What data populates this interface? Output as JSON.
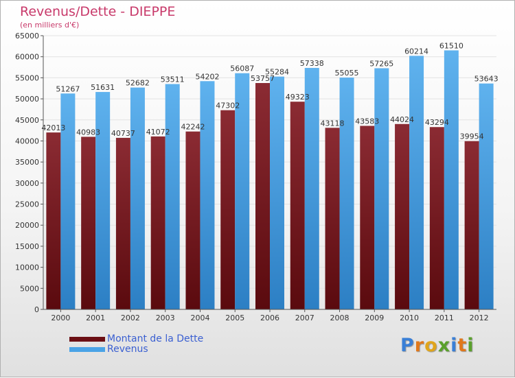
{
  "header": {
    "title": "Revenus/Dette - DIEPPE",
    "subtitle": "(en milliers d'€)"
  },
  "legend": {
    "items": [
      {
        "label": "Montant de la Dette",
        "color": "#6b0f14"
      },
      {
        "label": "Revenus",
        "color": "#4aa3e6"
      }
    ]
  },
  "logo": {
    "text": "Proxiti",
    "letter_colors": [
      "#3a7fd6",
      "#e0781c",
      "#e0a51c",
      "#5aa02c",
      "#3a7fd6",
      "#e0781c",
      "#5aa02c"
    ]
  },
  "chart_data": {
    "type": "bar",
    "categories": [
      "2000",
      "2001",
      "2002",
      "2003",
      "2004",
      "2005",
      "2006",
      "2007",
      "2008",
      "2009",
      "2010",
      "2011",
      "2012"
    ],
    "series": [
      {
        "name": "Montant de la Dette",
        "values": [
          42013,
          40983,
          40737,
          41072,
          42242,
          47302,
          53757,
          49323,
          43118,
          43583,
          44024,
          43294,
          39954
        ],
        "labels": [
          "42013",
          "40983",
          "40737",
          "41072",
          "42242",
          "47302",
          "53757",
          "49323",
          "43118",
          "43583",
          "44024",
          "43294",
          "39954"
        ],
        "color_top": "#8b2b33",
        "color_bottom": "#5a0a0e"
      },
      {
        "name": "Revenus",
        "values": [
          51267,
          51631,
          52682,
          53511,
          54202,
          56087,
          55284,
          57338,
          55055,
          57265,
          60214,
          61510,
          53643
        ],
        "labels": [
          "51267",
          "51631",
          "52682",
          "53511",
          "54202",
          "56087",
          "55284",
          "57338",
          "55055",
          "57265",
          "60214",
          "61510",
          "53643"
        ],
        "color_top": "#5fb2ee",
        "color_bottom": "#2c7fc4"
      }
    ],
    "yticks": [
      "0",
      "5000",
      "10000",
      "15000",
      "20000",
      "25000",
      "30000",
      "35000",
      "40000",
      "45000",
      "50000",
      "55000",
      "60000",
      "65000"
    ],
    "ylim": [
      0,
      65000
    ],
    "grid": true,
    "xlabel": "",
    "ylabel": ""
  }
}
